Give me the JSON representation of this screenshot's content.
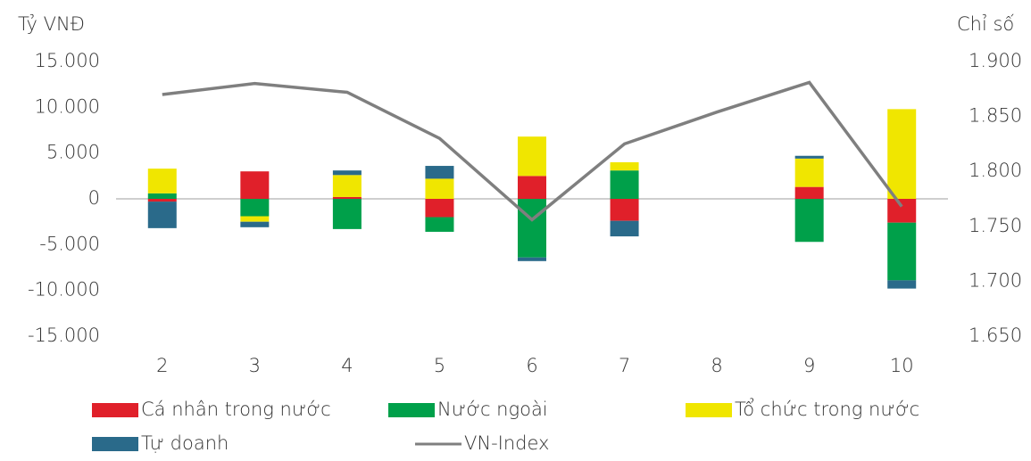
{
  "chart_data": {
    "type": "bar",
    "stacked": true,
    "y_label": "Tỷ VNĐ",
    "y2_label": "Chỉ số",
    "categories": [
      "2",
      "3",
      "4",
      "5",
      "6",
      "7",
      "8",
      "9",
      "10"
    ],
    "series": [
      {
        "name": "Cá nhân trong nước",
        "color": "#e0202a",
        "values": [
          -300,
          3000,
          200,
          -2000,
          2500,
          -2400,
          null,
          1300,
          -2600
        ]
      },
      {
        "name": "Nước ngoài",
        "color": "#00a04a",
        "values": [
          600,
          -1900,
          -3300,
          -1600,
          -6400,
          3100,
          null,
          -4700,
          -6300
        ]
      },
      {
        "name": "Tổ chức trong nước",
        "color": "#f0e600",
        "values": [
          2700,
          -600,
          2400,
          2200,
          4300,
          900,
          null,
          3100,
          9800
        ]
      },
      {
        "name": "Tự doanh",
        "color": "#2a6a8a",
        "values": [
          -2900,
          -600,
          500,
          1400,
          -400,
          -1700,
          null,
          300,
          -900
        ]
      },
      {
        "name": "VN-Index",
        "color": "#7f7f7f",
        "type": "line",
        "axis": "y2",
        "values": [
          1870,
          1880,
          1872,
          1830,
          1756,
          1825,
          1854,
          1881,
          1768
        ]
      }
    ],
    "ylim": [
      -15000,
      15000
    ],
    "yticks": [
      {
        "value": -15000,
        "label": "-15.000"
      },
      {
        "value": -10000,
        "label": "-10.000"
      },
      {
        "value": -5000,
        "label": "-5.000"
      },
      0,
      {
        "value": 5000,
        "label": "5.000"
      },
      {
        "value": 10000,
        "label": "10.000"
      },
      {
        "value": 15000,
        "label": "15.000"
      }
    ],
    "y2lim": [
      1650,
      1900
    ],
    "y2ticks": [
      {
        "value": 1650,
        "label": "1.650"
      },
      {
        "value": 1700,
        "label": "1.700"
      },
      {
        "value": 1750,
        "label": "1.750"
      },
      {
        "value": 1800,
        "label": "1.800"
      },
      {
        "value": 1850,
        "label": "1.850"
      },
      {
        "value": 1900,
        "label": "1.900"
      }
    ],
    "legend": "bottom"
  }
}
